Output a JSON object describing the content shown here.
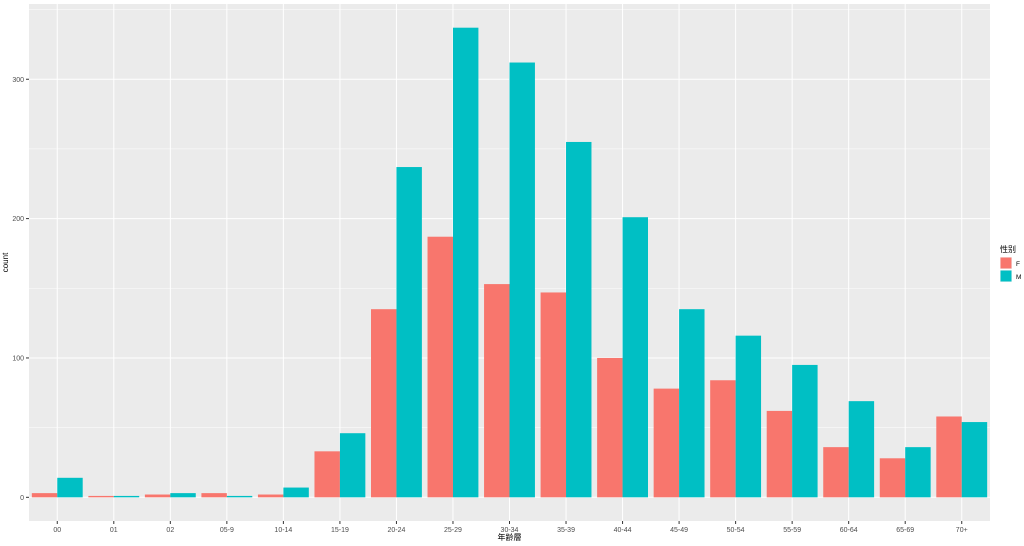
{
  "chart_data": {
    "type": "bar",
    "xlabel": "年齢層",
    "ylabel": "count",
    "categories": [
      "00",
      "01",
      "02",
      "05-9",
      "10-14",
      "15-19",
      "20-24",
      "25-29",
      "30-34",
      "35-39",
      "40-44",
      "45-49",
      "50-54",
      "55-59",
      "60-64",
      "65-69",
      "70+"
    ],
    "series": [
      {
        "name": "F",
        "color": "#F8766D",
        "values": [
          3,
          1,
          2,
          3,
          2,
          33,
          135,
          187,
          153,
          147,
          100,
          78,
          84,
          62,
          36,
          28,
          58
        ]
      },
      {
        "name": "M",
        "color": "#00BFC4",
        "values": [
          14,
          1,
          3,
          1,
          7,
          46,
          237,
          337,
          312,
          255,
          201,
          135,
          116,
          95,
          69,
          36,
          54
        ]
      }
    ],
    "ylim": [
      -17,
      354
    ],
    "yticks": [
      0,
      100,
      200,
      300
    ],
    "grid": true,
    "legend": {
      "title": "性别",
      "position": "right"
    },
    "panel_background": "#EBEBEB"
  }
}
